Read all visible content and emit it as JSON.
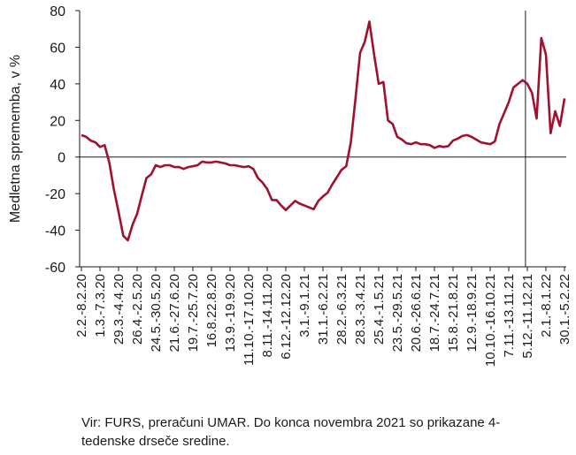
{
  "chart_data": {
    "type": "line",
    "ylabel": "Medletna sprememba, v %",
    "ylim": [
      -60,
      80
    ],
    "yticks": [
      "80",
      "60",
      "40",
      "20",
      "0",
      "-20",
      "-40",
      "-60"
    ],
    "x_tick_labels": [
      "2.2.-8.2.20",
      "1.3.-7.3.20",
      "29.3.-4.4.20",
      "26.4.-2.5.20",
      "24.5.-30.5.20",
      "21.6.-27.6.20",
      "19.7.-25.7.20",
      "16.8.22.8.20",
      "13.9.-19.9.20",
      "11.10.-17.10.20",
      "8.11.-14.11.20",
      "6.12.-12.12.20",
      "3.1.-9.1.21",
      "31.1.-6.2.21",
      "28.2.-6.3.21",
      "28.3.-3.4.21",
      "25.4.-1.5.21",
      "23.5.-29.5.21",
      "20.6.-26.6.21",
      "18.7.-24.7.21",
      "15.8.-21.8.21",
      "12.9.-18.9.21",
      "10.10.-16.10.21",
      "7.11.-13.11.21",
      "5.12.-11.12.21",
      "2.1.-8.1.22",
      "30.1.-5.2.22"
    ],
    "series": [
      {
        "color": "#a0112f",
        "values": [
          12,
          11,
          9,
          8,
          5.5,
          6.5,
          -3,
          -18,
          -30,
          -43,
          -45.5,
          -37,
          -31,
          -21,
          -11.5,
          -9.5,
          -4.5,
          -5.5,
          -4.5,
          -4.5,
          -5.5,
          -5.5,
          -6.5,
          -5.5,
          -5,
          -4.5,
          -2.5,
          -3,
          -3,
          -2.5,
          -3,
          -3.5,
          -4.5,
          -4.5,
          -5,
          -5.5,
          -5,
          -6.5,
          -11.5,
          -14,
          -17.5,
          -23.5,
          -23.5,
          -26.5,
          -29,
          -26.5,
          -24,
          -25.5,
          -26.5,
          -27.5,
          -28.5,
          -24,
          -21.5,
          -19.5,
          -15,
          -11,
          -7,
          -5,
          8,
          32,
          57,
          63,
          74,
          56,
          40,
          41,
          20,
          18,
          11,
          9.5,
          7.5,
          7,
          8,
          7,
          7,
          6.5,
          5,
          6,
          5.5,
          6,
          9,
          10,
          11.5,
          12,
          11,
          9.5,
          8,
          7.5,
          7,
          8.5,
          18,
          24,
          30,
          38,
          40,
          42,
          40,
          35,
          21,
          65,
          56,
          13,
          25,
          17,
          32
        ]
      }
    ],
    "marker_line_after": "5.12.-11.12.21",
    "grid": false
  },
  "source_note": "Vir: FURS, preračuni UMAR. Do konca novembra 2021 so prikazane 4-tedenske drseče sredine."
}
